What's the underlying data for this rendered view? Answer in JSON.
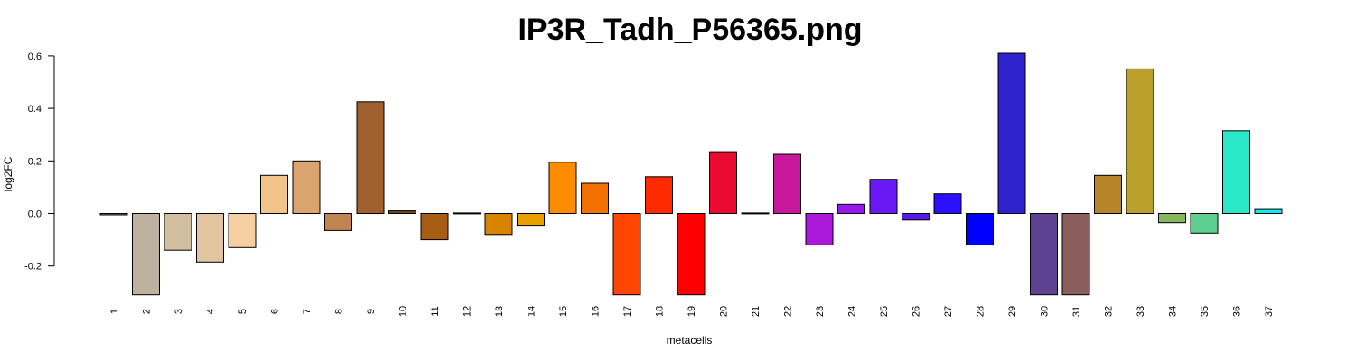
{
  "chart_data": {
    "type": "bar",
    "title": "IP3R_Tadh_P56365.png",
    "xlabel": "metacells",
    "ylabel": "log2FC",
    "ylim": [
      -0.31,
      0.61
    ],
    "yticks": [
      "-0.2",
      "0.0",
      "0.2",
      "0.4",
      "0.6"
    ],
    "ytick_values": [
      -0.2,
      0.0,
      0.2,
      0.4,
      0.6
    ],
    "grid": false,
    "legend": "none",
    "categories": [
      "1",
      "2",
      "3",
      "4",
      "5",
      "6",
      "7",
      "8",
      "9",
      "10",
      "11",
      "12",
      "13",
      "14",
      "15",
      "16",
      "17",
      "18",
      "19",
      "20",
      "21",
      "22",
      "23",
      "24",
      "25",
      "26",
      "27",
      "28",
      "29",
      "30",
      "31",
      "32",
      "33",
      "34",
      "35",
      "36",
      "37"
    ],
    "values": [
      -0.005,
      -0.31,
      -0.14,
      -0.185,
      -0.13,
      0.145,
      0.2,
      -0.065,
      0.425,
      0.01,
      -0.1,
      0.002,
      -0.08,
      -0.045,
      0.195,
      0.115,
      -0.31,
      0.14,
      -0.31,
      0.235,
      0.002,
      0.225,
      -0.12,
      0.035,
      0.13,
      -0.025,
      0.075,
      -0.12,
      0.61,
      -0.31,
      -0.31,
      0.145,
      0.55,
      -0.035,
      -0.075,
      0.315,
      0.015
    ],
    "colors": [
      "#8B8378",
      "#BDB2A0",
      "#D2BFA0",
      "#E2C49E",
      "#F5CFA0",
      "#F4C38A",
      "#DBA36D",
      "#BF844F",
      "#A0612F",
      "#7A4418",
      "#A85D14",
      "#B56A10",
      "#D98200",
      "#EB9E00",
      "#FF8C00",
      "#F27000",
      "#FF4500",
      "#FF2A00",
      "#FF0000",
      "#EB0A32",
      "#D81060",
      "#C8189C",
      "#AA18D8",
      "#9A18F0",
      "#6A18F5",
      "#5A1AE8",
      "#2A10FF",
      "#0000FF",
      "#2E22CC",
      "#5C4291",
      "#8B5E5C",
      "#B78429",
      "#B9A12C",
      "#88B85E",
      "#5ED08E",
      "#2AE8C8",
      "#14EAEA"
    ]
  }
}
